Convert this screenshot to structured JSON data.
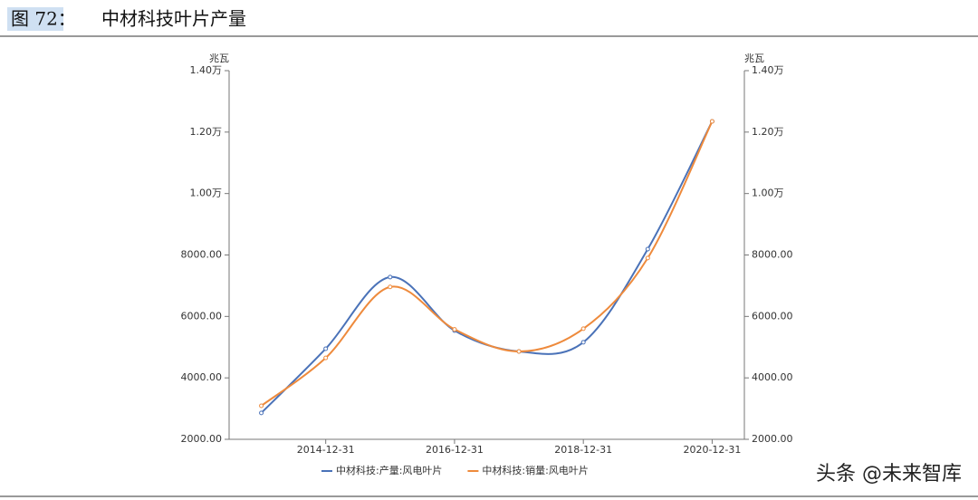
{
  "chart_data": {
    "type": "line",
    "figure_label": "图 72：",
    "title": "中材科技叶片产量",
    "y_label": "兆瓦",
    "y2_label": "兆瓦",
    "categories": [
      null,
      "2014-12-31",
      null,
      "2016-12-31",
      null,
      "2018-12-31",
      null,
      "2020-12-31"
    ],
    "series": [
      {
        "name": "中材科技:产量:风电叶片",
        "color": "#4a72b8",
        "values": [
          2860,
          4950,
          7280,
          5540,
          4860,
          5160,
          8190,
          12350
        ]
      },
      {
        "name": "中材科技:销量:风电叶片",
        "color": "#ee8a3c",
        "axis": "y2",
        "values": [
          3090,
          4650,
          6960,
          5580,
          4860,
          5600,
          7900,
          12350
        ]
      }
    ],
    "ylim": [
      2000,
      14000
    ],
    "yticks": [
      {
        "value": 2000,
        "label": "2000.00"
      },
      {
        "value": 4000,
        "label": "4000.00"
      },
      {
        "value": 6000,
        "label": "6000.00"
      },
      {
        "value": 8000,
        "label": "8000.00"
      },
      {
        "value": 10000,
        "label": "1.00万"
      },
      {
        "value": 12000,
        "label": "1.20万"
      },
      {
        "value": 14000,
        "label": "1.40万"
      }
    ],
    "y2lim": [
      2000,
      14000
    ],
    "y2ticks": [
      {
        "value": 2000,
        "label": "2000.00"
      },
      {
        "value": 4000,
        "label": "4000.00"
      },
      {
        "value": 6000,
        "label": "6000.00"
      },
      {
        "value": 8000,
        "label": "8000.00"
      },
      {
        "value": 10000,
        "label": "1.00万"
      },
      {
        "value": 12000,
        "label": "1.20万"
      },
      {
        "value": 14000,
        "label": "1.40万"
      }
    ],
    "legend": "bottom",
    "watermark": "头条 @未来智库"
  }
}
